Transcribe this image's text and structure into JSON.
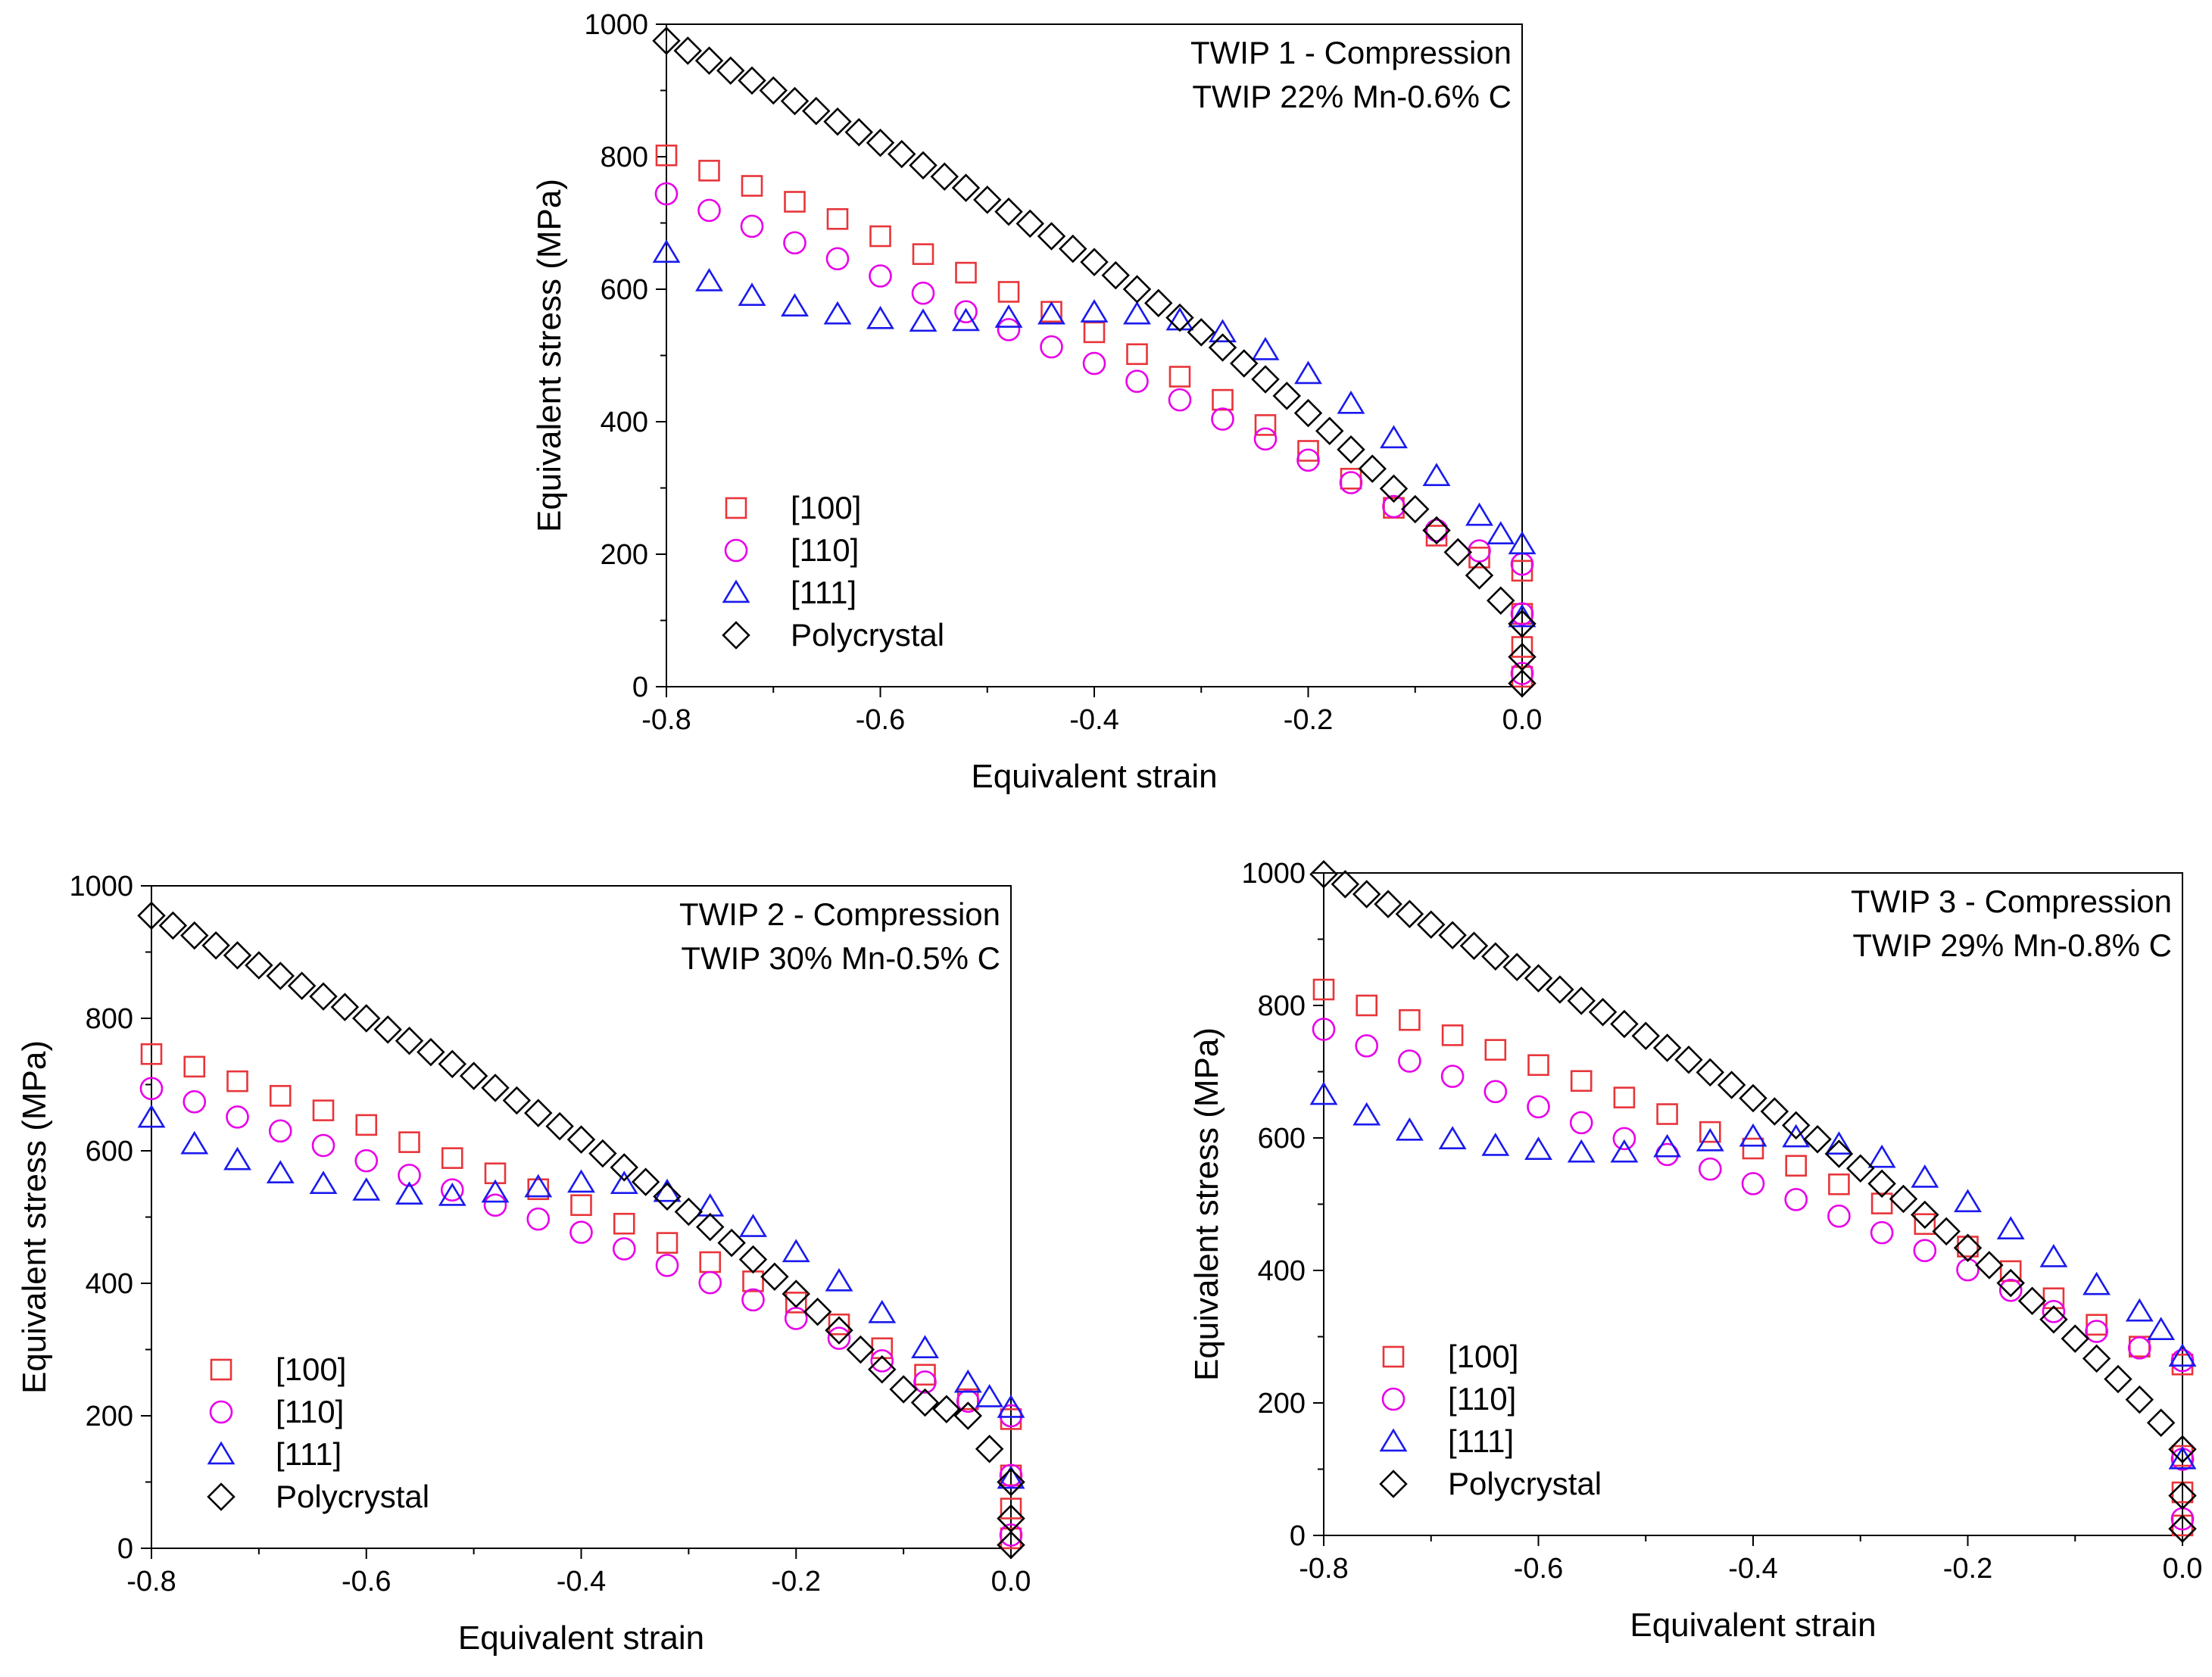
{
  "chart_data": [
    {
      "type": "scatter",
      "title": "TWIP 1 - Compression",
      "subtitle": "TWIP 22% Mn-0.6% C",
      "xlabel": "Equivalent strain",
      "ylabel": "Equivalent stress (MPa)",
      "xlim": [
        -0.8,
        0.0
      ],
      "ylim": [
        0,
        1000
      ],
      "xticks": [
        -0.8,
        -0.6,
        -0.4,
        -0.2,
        0.0
      ],
      "xtick_labels": [
        "-0.8",
        "-0.6",
        "-0.4",
        "-0.2",
        "0.0"
      ],
      "yticks": [
        0,
        200,
        400,
        600,
        800,
        1000
      ],
      "ytick_labels": [
        "0",
        "200",
        "400",
        "600",
        "800",
        "1000"
      ],
      "legend_position": "lower-left",
      "grid": false,
      "series": [
        {
          "name": "[100]",
          "marker": "square",
          "color": "#e8353a",
          "x": [
            -0.8,
            -0.76,
            -0.72,
            -0.68,
            -0.64,
            -0.6,
            -0.56,
            -0.52,
            -0.48,
            -0.44,
            -0.4,
            -0.36,
            -0.32,
            -0.28,
            -0.24,
            -0.2,
            -0.16,
            -0.12,
            -0.08,
            -0.04,
            0.0,
            0.0,
            0.0,
            0.0
          ],
          "y": [
            802,
            779,
            756,
            732,
            706,
            680,
            653,
            625,
            596,
            566,
            535,
            502,
            468,
            433,
            395,
            356,
            314,
            270,
            228,
            195,
            175,
            110,
            60,
            15
          ]
        },
        {
          "name": "[110]",
          "marker": "circle",
          "color": "#e800e8",
          "x": [
            -0.8,
            -0.76,
            -0.72,
            -0.68,
            -0.64,
            -0.6,
            -0.56,
            -0.52,
            -0.48,
            -0.44,
            -0.4,
            -0.36,
            -0.32,
            -0.28,
            -0.24,
            -0.2,
            -0.16,
            -0.12,
            -0.08,
            -0.04,
            0.0,
            0.0,
            0.0
          ],
          "y": [
            744,
            719,
            695,
            670,
            646,
            620,
            594,
            566,
            539,
            513,
            488,
            461,
            433,
            404,
            374,
            342,
            308,
            272,
            236,
            205,
            185,
            110,
            20
          ]
        },
        {
          "name": "[111]",
          "marker": "triangle",
          "color": "#1a1aee",
          "x": [
            -0.8,
            -0.76,
            -0.72,
            -0.68,
            -0.64,
            -0.6,
            -0.56,
            -0.52,
            -0.48,
            -0.44,
            -0.4,
            -0.36,
            -0.32,
            -0.28,
            -0.24,
            -0.2,
            -0.16,
            -0.12,
            -0.08,
            -0.04,
            -0.02,
            0.0,
            0.0
          ],
          "y": [
            655,
            612,
            590,
            574,
            562,
            555,
            551,
            552,
            557,
            562,
            565,
            562,
            553,
            535,
            508,
            472,
            427,
            375,
            318,
            258,
            230,
            215,
            105
          ]
        },
        {
          "name": "Polycrystal",
          "marker": "diamond",
          "color": "#000000",
          "x": [
            -0.8,
            -0.78,
            -0.76,
            -0.74,
            -0.72,
            -0.7,
            -0.68,
            -0.66,
            -0.64,
            -0.62,
            -0.6,
            -0.58,
            -0.56,
            -0.54,
            -0.52,
            -0.5,
            -0.48,
            -0.46,
            -0.44,
            -0.42,
            -0.4,
            -0.38,
            -0.36,
            -0.34,
            -0.32,
            -0.3,
            -0.28,
            -0.26,
            -0.24,
            -0.22,
            -0.2,
            -0.18,
            -0.16,
            -0.14,
            -0.12,
            -0.1,
            -0.08,
            -0.06,
            -0.04,
            -0.02,
            0.0,
            0.0,
            0.0
          ],
          "y": [
            975,
            960,
            945,
            930,
            915,
            900,
            884,
            869,
            853,
            837,
            821,
            804,
            787,
            770,
            753,
            735,
            717,
            699,
            680,
            661,
            641,
            621,
            600,
            579,
            557,
            535,
            512,
            488,
            464,
            439,
            413,
            386,
            358,
            329,
            299,
            268,
            236,
            203,
            168,
            130,
            95,
            45,
            5
          ]
        }
      ]
    },
    {
      "type": "scatter",
      "title": "TWIP 2 - Compression",
      "subtitle": "TWIP 30% Mn-0.5% C",
      "xlabel": "Equivalent strain",
      "ylabel": "Equivalent stress (MPa)",
      "xlim": [
        -0.8,
        0.0
      ],
      "ylim": [
        0,
        1000
      ],
      "xticks": [
        -0.8,
        -0.6,
        -0.4,
        -0.2,
        0.0
      ],
      "xtick_labels": [
        "-0.8",
        "-0.6",
        "-0.4",
        "-0.2",
        "0.0"
      ],
      "yticks": [
        0,
        200,
        400,
        600,
        800,
        1000
      ],
      "ytick_labels": [
        "0",
        "200",
        "400",
        "600",
        "800",
        "1000"
      ],
      "legend_position": "lower-left",
      "grid": false,
      "series": [
        {
          "name": "[100]",
          "marker": "square",
          "color": "#e8353a",
          "x": [
            -0.8,
            -0.76,
            -0.72,
            -0.68,
            -0.64,
            -0.6,
            -0.56,
            -0.52,
            -0.48,
            -0.44,
            -0.4,
            -0.36,
            -0.32,
            -0.28,
            -0.24,
            -0.2,
            -0.16,
            -0.12,
            -0.08,
            -0.04,
            0.0,
            0.0,
            0.0,
            0.0
          ],
          "y": [
            746,
            727,
            705,
            683,
            661,
            639,
            613,
            589,
            566,
            542,
            518,
            490,
            461,
            432,
            403,
            371,
            338,
            302,
            262,
            225,
            195,
            110,
            60,
            15
          ]
        },
        {
          "name": "[110]",
          "marker": "circle",
          "color": "#e800e8",
          "x": [
            -0.8,
            -0.76,
            -0.72,
            -0.68,
            -0.64,
            -0.6,
            -0.56,
            -0.52,
            -0.48,
            -0.44,
            -0.4,
            -0.36,
            -0.32,
            -0.28,
            -0.24,
            -0.2,
            -0.16,
            -0.12,
            -0.08,
            -0.04,
            0.0,
            0.0,
            0.0
          ],
          "y": [
            694,
            674,
            651,
            630,
            608,
            585,
            563,
            541,
            518,
            497,
            477,
            452,
            427,
            401,
            375,
            347,
            317,
            283,
            251,
            222,
            200,
            110,
            20
          ]
        },
        {
          "name": "[111]",
          "marker": "triangle",
          "color": "#1a1aee",
          "x": [
            -0.8,
            -0.76,
            -0.72,
            -0.68,
            -0.64,
            -0.6,
            -0.56,
            -0.52,
            -0.48,
            -0.44,
            -0.4,
            -0.36,
            -0.32,
            -0.28,
            -0.24,
            -0.2,
            -0.16,
            -0.12,
            -0.08,
            -0.04,
            -0.02,
            0.0,
            0.0
          ],
          "y": [
            650,
            610,
            586,
            566,
            550,
            540,
            534,
            532,
            537,
            545,
            552,
            550,
            538,
            516,
            485,
            447,
            403,
            355,
            302,
            250,
            228,
            212,
            105
          ]
        },
        {
          "name": "Polycrystal",
          "marker": "diamond",
          "color": "#000000",
          "x": [
            -0.8,
            -0.78,
            -0.76,
            -0.74,
            -0.72,
            -0.7,
            -0.68,
            -0.66,
            -0.64,
            -0.62,
            -0.6,
            -0.58,
            -0.56,
            -0.54,
            -0.52,
            -0.5,
            -0.48,
            -0.46,
            -0.44,
            -0.42,
            -0.4,
            -0.38,
            -0.36,
            -0.34,
            -0.32,
            -0.3,
            -0.28,
            -0.26,
            -0.24,
            -0.22,
            -0.2,
            -0.18,
            -0.16,
            -0.14,
            -0.12,
            -0.1,
            -0.08,
            -0.06,
            -0.04,
            -0.02,
            0.0,
            0.0,
            0.0
          ],
          "y": [
            955,
            940,
            925,
            910,
            895,
            880,
            864,
            849,
            833,
            817,
            800,
            783,
            766,
            749,
            731,
            713,
            695,
            676,
            657,
            637,
            617,
            596,
            575,
            553,
            531,
            508,
            485,
            461,
            436,
            410,
            384,
            357,
            329,
            300,
            270,
            240,
            220,
            210,
            200,
            150,
            100,
            45,
            5
          ]
        }
      ]
    },
    {
      "type": "scatter",
      "title": "TWIP 3 - Compression",
      "subtitle": "TWIP 29% Mn-0.8% C",
      "xlabel": "Equivalent strain",
      "ylabel": "Equivalent stress (MPa)",
      "xlim": [
        -0.8,
        0.0
      ],
      "ylim": [
        0,
        1000
      ],
      "xticks": [
        -0.8,
        -0.6,
        -0.4,
        -0.2,
        0.0
      ],
      "xtick_labels": [
        "-0.8",
        "-0.6",
        "-0.4",
        "-0.2",
        "0.0"
      ],
      "yticks": [
        0,
        200,
        400,
        600,
        800,
        1000
      ],
      "ytick_labels": [
        "0",
        "200",
        "400",
        "600",
        "800",
        "1000"
      ],
      "legend_position": "lower-left",
      "grid": false,
      "series": [
        {
          "name": "[100]",
          "marker": "square",
          "color": "#e8353a",
          "x": [
            -0.8,
            -0.76,
            -0.72,
            -0.68,
            -0.64,
            -0.6,
            -0.56,
            -0.52,
            -0.48,
            -0.44,
            -0.4,
            -0.36,
            -0.32,
            -0.28,
            -0.24,
            -0.2,
            -0.16,
            -0.12,
            -0.08,
            -0.04,
            0.0,
            0.0,
            0.0,
            0.0
          ],
          "y": [
            824,
            800,
            778,
            755,
            733,
            710,
            686,
            661,
            636,
            609,
            584,
            558,
            530,
            501,
            470,
            436,
            399,
            358,
            318,
            285,
            258,
            120,
            65,
            15
          ]
        },
        {
          "name": "[110]",
          "marker": "circle",
          "color": "#e800e8",
          "x": [
            -0.8,
            -0.76,
            -0.72,
            -0.68,
            -0.64,
            -0.6,
            -0.56,
            -0.52,
            -0.48,
            -0.44,
            -0.4,
            -0.36,
            -0.32,
            -0.28,
            -0.24,
            -0.2,
            -0.16,
            -0.12,
            -0.08,
            -0.04,
            0.0,
            0.0,
            0.0
          ],
          "y": [
            764,
            739,
            716,
            693,
            670,
            647,
            623,
            599,
            575,
            553,
            531,
            507,
            482,
            457,
            430,
            401,
            370,
            338,
            308,
            283,
            264,
            115,
            25
          ]
        },
        {
          "name": "[111]",
          "marker": "triangle",
          "color": "#1a1aee",
          "x": [
            -0.8,
            -0.76,
            -0.72,
            -0.68,
            -0.64,
            -0.6,
            -0.56,
            -0.52,
            -0.48,
            -0.44,
            -0.4,
            -0.36,
            -0.32,
            -0.28,
            -0.24,
            -0.2,
            -0.16,
            -0.12,
            -0.08,
            -0.04,
            -0.02,
            0.0,
            0.0
          ],
          "y": [
            665,
            634,
            611,
            598,
            588,
            582,
            578,
            578,
            586,
            595,
            602,
            601,
            590,
            570,
            540,
            503,
            462,
            420,
            378,
            338,
            310,
            270,
            115
          ]
        },
        {
          "name": "Polycrystal",
          "marker": "diamond",
          "color": "#000000",
          "x": [
            -0.8,
            -0.78,
            -0.76,
            -0.74,
            -0.72,
            -0.7,
            -0.68,
            -0.66,
            -0.64,
            -0.62,
            -0.6,
            -0.58,
            -0.56,
            -0.54,
            -0.52,
            -0.5,
            -0.48,
            -0.46,
            -0.44,
            -0.42,
            -0.4,
            -0.38,
            -0.36,
            -0.34,
            -0.32,
            -0.3,
            -0.28,
            -0.26,
            -0.24,
            -0.22,
            -0.2,
            -0.18,
            -0.16,
            -0.14,
            -0.12,
            -0.1,
            -0.08,
            -0.06,
            -0.04,
            -0.02,
            0.0,
            0.0,
            0.0
          ],
          "y": [
            998,
            983,
            968,
            953,
            938,
            922,
            906,
            890,
            874,
            858,
            841,
            824,
            807,
            790,
            772,
            754,
            736,
            718,
            699,
            680,
            660,
            640,
            619,
            598,
            576,
            554,
            531,
            508,
            484,
            459,
            434,
            408,
            381,
            354,
            326,
            297,
            267,
            236,
            205,
            170,
            130,
            60,
            10
          ]
        }
      ]
    }
  ]
}
